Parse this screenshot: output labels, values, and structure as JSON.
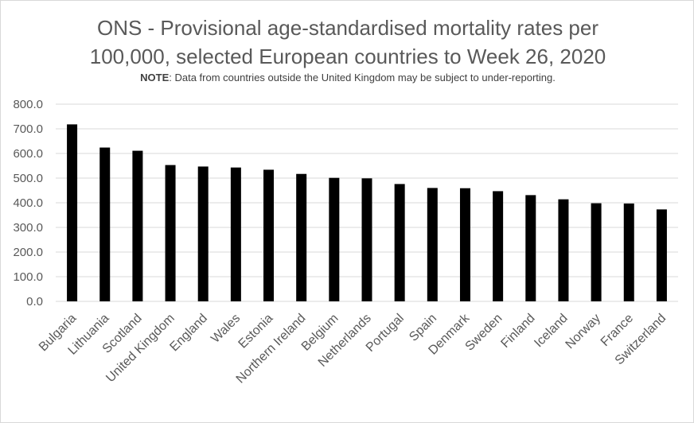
{
  "chart_data": {
    "type": "bar",
    "title_line1": "ONS - Provisional age-standardised mortality rates per",
    "title_line2": "100,000, selected European countries to Week 26, 2020",
    "note_label": "NOTE",
    "note_text": ": Data from countries outside the United Kingdom  may be subject to under-reporting.",
    "categories": [
      "Bulgaria",
      "Lithuania",
      "Scotland",
      "United Kingdom",
      "England",
      "Wales",
      "Estonia",
      "Northern Ireland",
      "Belgium",
      "Netherlands",
      "Portugal",
      "Spain",
      "Denmark",
      "Sweden",
      "Finland",
      "Iceland",
      "Norway",
      "France",
      "Switzerland"
    ],
    "values": [
      718,
      624,
      611,
      553,
      547,
      543,
      534,
      517,
      501,
      499,
      476,
      460,
      459,
      447,
      431,
      414,
      398,
      397,
      373
    ],
    "ylim": [
      0,
      800
    ],
    "yticks": [
      "0.0",
      "100.0",
      "200.0",
      "300.0",
      "400.0",
      "500.0",
      "600.0",
      "700.0",
      "800.0"
    ],
    "grid": true,
    "bar_color": "#000000",
    "grid_color": "#d9d9d9"
  }
}
